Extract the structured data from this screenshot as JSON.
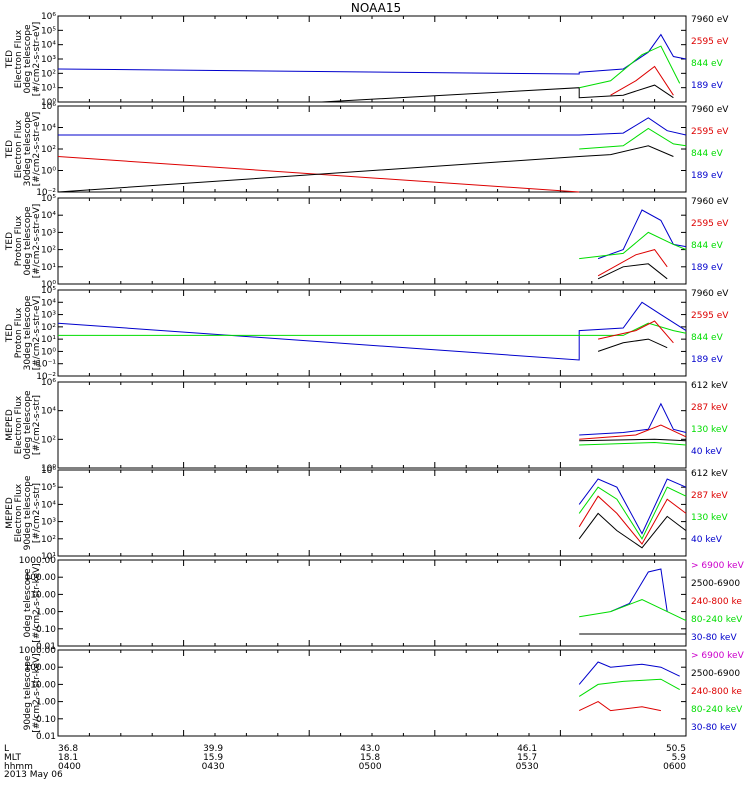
{
  "title": "NOAA15",
  "footer": {
    "rows": [
      {
        "label": "L",
        "values": [
          "36.8",
          "39.9",
          "43.0",
          "46.1",
          "50.5"
        ]
      },
      {
        "label": "MLT",
        "values": [
          "18.1",
          "15.9",
          "15.8",
          "15.7",
          "5.9"
        ]
      },
      {
        "label": "hhmm",
        "values": [
          "0400",
          "0430",
          "0500",
          "0530",
          "0600"
        ]
      }
    ],
    "date": "2013 May 06"
  },
  "colors": {
    "black": "#000000",
    "red": "#dd0000",
    "green": "#00dd00",
    "blue": "#0000cc",
    "magenta": "#cc00cc"
  },
  "chart_data": [
    {
      "type": "line",
      "ylabel": [
        "TED",
        "Electron Flux",
        "0deg telescope",
        "[#/cm2-s-str-eV]"
      ],
      "yscale": "log",
      "ylim": [
        1,
        1000000
      ],
      "ytick_labels": [
        "10⁰",
        "10¹",
        "10²",
        "10³",
        "10⁴",
        "10⁵",
        "10⁶"
      ],
      "legend": [
        {
          "label": "7960 eV",
          "color": "black"
        },
        {
          "label": "2595 eV",
          "color": "red"
        },
        {
          "label": "844 eV",
          "color": "green"
        },
        {
          "label": "189 eV",
          "color": "blue"
        }
      ],
      "series": [
        {
          "color": "blue",
          "values": [
            [
              0,
              200
            ],
            [
              0.83,
              90
            ],
            [
              0.83,
              120
            ],
            [
              0.9,
              200
            ],
            [
              0.94,
              3000
            ],
            [
              0.96,
              50000
            ],
            [
              0.98,
              1500
            ],
            [
              1,
              1000
            ]
          ]
        },
        {
          "color": "black",
          "values": [
            [
              0.42,
              1
            ],
            [
              0.83,
              10
            ],
            [
              0.83,
              2
            ],
            [
              0.9,
              3
            ],
            [
              0.95,
              15
            ],
            [
              0.98,
              2
            ]
          ]
        },
        {
          "color": "green",
          "values": [
            [
              0.83,
              10
            ],
            [
              0.88,
              30
            ],
            [
              0.93,
              2000
            ],
            [
              0.96,
              8000
            ],
            [
              0.99,
              20
            ]
          ]
        },
        {
          "color": "red",
          "values": [
            [
              0.88,
              3
            ],
            [
              0.92,
              30
            ],
            [
              0.95,
              300
            ],
            [
              0.98,
              3
            ]
          ]
        }
      ]
    },
    {
      "type": "line",
      "ylabel": [
        "TED",
        "Electron Flux",
        "30deg telescope",
        "[#/cm2-s-str-eV]"
      ],
      "yscale": "log",
      "ylim": [
        0.01,
        1000000
      ],
      "ytick_labels": [
        "10⁻²",
        "10⁰",
        "10²",
        "10⁴",
        "10⁶"
      ],
      "legend": [
        {
          "label": "7960 eV",
          "color": "black"
        },
        {
          "label": "2595 eV",
          "color": "red"
        },
        {
          "label": "844 eV",
          "color": "green"
        },
        {
          "label": "189 eV",
          "color": "blue"
        }
      ],
      "series": [
        {
          "color": "blue",
          "values": [
            [
              0,
              2000
            ],
            [
              0.83,
              2000
            ],
            [
              0.9,
              3000
            ],
            [
              0.94,
              80000
            ],
            [
              0.97,
              5000
            ],
            [
              1,
              2000
            ]
          ]
        },
        {
          "color": "red",
          "values": [
            [
              0,
              20
            ],
            [
              0.83,
              0.01
            ]
          ]
        },
        {
          "color": "black",
          "values": [
            [
              0,
              0.01
            ],
            [
              0.83,
              20
            ],
            [
              0.88,
              30
            ],
            [
              0.94,
              200
            ],
            [
              0.98,
              20
            ]
          ]
        },
        {
          "color": "green",
          "values": [
            [
              0.83,
              100
            ],
            [
              0.9,
              200
            ],
            [
              0.94,
              8000
            ],
            [
              0.98,
              300
            ],
            [
              1,
              200
            ]
          ]
        }
      ]
    },
    {
      "type": "line",
      "ylabel": [
        "TED",
        "Proton Flux",
        "0deg telescope",
        "[#/cm2-s-str-eV]"
      ],
      "yscale": "log",
      "ylim": [
        1,
        100000
      ],
      "ytick_labels": [
        "10⁰",
        "10¹",
        "10²",
        "10³",
        "10⁴",
        "10⁵"
      ],
      "legend": [
        {
          "label": "7960 eV",
          "color": "black"
        },
        {
          "label": "2595 eV",
          "color": "red"
        },
        {
          "label": "844 eV",
          "color": "green"
        },
        {
          "label": "189 eV",
          "color": "blue"
        }
      ],
      "series": [
        {
          "color": "blue",
          "values": [
            [
              0.86,
              30
            ],
            [
              0.9,
              100
            ],
            [
              0.93,
              20000
            ],
            [
              0.96,
              5000
            ],
            [
              0.98,
              200
            ],
            [
              1,
              150
            ]
          ]
        },
        {
          "color": "green",
          "values": [
            [
              0.83,
              30
            ],
            [
              0.9,
              60
            ],
            [
              0.94,
              1000
            ],
            [
              0.98,
              200
            ],
            [
              1,
              100
            ]
          ]
        },
        {
          "color": "red",
          "values": [
            [
              0.86,
              3
            ],
            [
              0.92,
              50
            ],
            [
              0.95,
              100
            ],
            [
              0.97,
              10
            ]
          ]
        },
        {
          "color": "black",
          "values": [
            [
              0.86,
              2
            ],
            [
              0.9,
              10
            ],
            [
              0.94,
              15
            ],
            [
              0.97,
              2
            ]
          ]
        }
      ]
    },
    {
      "type": "line",
      "ylabel": [
        "TED",
        "Proton Flux",
        "30deg telescope",
        "[#/cm2-s-str-eV]"
      ],
      "yscale": "log",
      "ylim": [
        0.01,
        100000
      ],
      "ytick_labels": [
        "10⁻²",
        "10⁻¹",
        "10⁰",
        "10¹",
        "10²",
        "10³",
        "10⁴",
        "10⁵"
      ],
      "legend": [
        {
          "label": "7960 eV",
          "color": "black"
        },
        {
          "label": "2595 eV",
          "color": "red"
        },
        {
          "label": "844 eV",
          "color": "green"
        },
        {
          "label": "189 eV",
          "color": "blue"
        }
      ],
      "series": [
        {
          "color": "blue",
          "values": [
            [
              0,
              200
            ],
            [
              0.83,
              0.2
            ],
            [
              0.83,
              50
            ],
            [
              0.9,
              80
            ],
            [
              0.93,
              10000
            ],
            [
              0.96,
              1000
            ],
            [
              1,
              50
            ]
          ]
        },
        {
          "color": "green",
          "values": [
            [
              0,
              20
            ],
            [
              0.9,
              20
            ],
            [
              0.94,
              200
            ],
            [
              0.98,
              50
            ],
            [
              1,
              30
            ]
          ]
        },
        {
          "color": "red",
          "values": [
            [
              0.86,
              10
            ],
            [
              0.92,
              50
            ],
            [
              0.95,
              300
            ],
            [
              0.98,
              5
            ]
          ]
        },
        {
          "color": "black",
          "values": [
            [
              0.86,
              1
            ],
            [
              0.9,
              5
            ],
            [
              0.94,
              10
            ],
            [
              0.97,
              2
            ]
          ]
        }
      ]
    },
    {
      "type": "line",
      "ylabel": [
        "MEPED",
        "Electron Flux",
        "0deg telescope",
        "[#/cm2-s-str]"
      ],
      "yscale": "log",
      "ylim": [
        1,
        1000000
      ],
      "ytick_labels": [
        "10⁰",
        "10²",
        "10⁴",
        "10⁶"
      ],
      "legend": [
        {
          "label": "612 keV",
          "color": "black"
        },
        {
          "label": "287 keV",
          "color": "red"
        },
        {
          "label": "130 keV",
          "color": "green"
        },
        {
          "label": "40 keV",
          "color": "blue"
        }
      ],
      "series": [
        {
          "color": "blue",
          "values": [
            [
              0.83,
              200
            ],
            [
              0.9,
              300
            ],
            [
              0.94,
              500
            ],
            [
              0.96,
              30000
            ],
            [
              0.98,
              500
            ],
            [
              1,
              300
            ]
          ]
        },
        {
          "color": "red",
          "values": [
            [
              0.83,
              100
            ],
            [
              0.92,
              200
            ],
            [
              0.96,
              1000
            ],
            [
              1,
              150
            ]
          ]
        },
        {
          "color": "black",
          "values": [
            [
              0.83,
              80
            ],
            [
              0.95,
              100
            ],
            [
              1,
              80
            ]
          ]
        },
        {
          "color": "green",
          "values": [
            [
              0.83,
              40
            ],
            [
              0.95,
              60
            ],
            [
              1,
              40
            ]
          ]
        }
      ]
    },
    {
      "type": "line",
      "ylabel": [
        "MEPED",
        "Electron Flux",
        "90deg telescope",
        "[#/cm2-s-str]"
      ],
      "yscale": "log",
      "ylim": [
        10,
        1000000
      ],
      "ytick_labels": [
        "10¹",
        "10²",
        "10³",
        "10⁴",
        "10⁵",
        "10⁶"
      ],
      "legend": [
        {
          "label": "612 keV",
          "color": "black"
        },
        {
          "label": "287 keV",
          "color": "red"
        },
        {
          "label": "130 keV",
          "color": "green"
        },
        {
          "label": "40 keV",
          "color": "blue"
        }
      ],
      "series": [
        {
          "color": "blue",
          "values": [
            [
              0.83,
              10000
            ],
            [
              0.86,
              300000
            ],
            [
              0.89,
              100000
            ],
            [
              0.93,
              200
            ],
            [
              0.97,
              300000
            ],
            [
              1,
              100000
            ]
          ]
        },
        {
          "color": "green",
          "values": [
            [
              0.83,
              3000
            ],
            [
              0.86,
              100000
            ],
            [
              0.89,
              20000
            ],
            [
              0.93,
              100
            ],
            [
              0.97,
              100000
            ],
            [
              1,
              30000
            ]
          ]
        },
        {
          "color": "red",
          "values": [
            [
              0.83,
              500
            ],
            [
              0.86,
              30000
            ],
            [
              0.89,
              3000
            ],
            [
              0.93,
              50
            ],
            [
              0.97,
              20000
            ],
            [
              1,
              3000
            ]
          ]
        },
        {
          "color": "black",
          "values": [
            [
              0.83,
              100
            ],
            [
              0.86,
              3000
            ],
            [
              0.89,
              300
            ],
            [
              0.93,
              30
            ],
            [
              0.97,
              2000
            ],
            [
              1,
              300
            ]
          ]
        }
      ]
    },
    {
      "type": "line",
      "ylabel": [
        "0deg telescope",
        "[#/cm2-s-str-keV]"
      ],
      "yscale": "log",
      "ylim": [
        0.01,
        1000
      ],
      "ytick_labels": [
        "0.01",
        "0.10",
        "1.00",
        "10.00",
        "100.00",
        "1000.00"
      ],
      "legend": [
        {
          "label": "> 6900 keV",
          "color": "magenta"
        },
        {
          "label": "2500-6900",
          "color": "black"
        },
        {
          "label": "240-800 ke",
          "color": "red"
        },
        {
          "label": "80-240 keV",
          "color": "green"
        },
        {
          "label": "30-80 keV",
          "color": "blue"
        }
      ],
      "series": [
        {
          "color": "blue",
          "values": [
            [
              0.88,
              1
            ],
            [
              0.91,
              3
            ],
            [
              0.94,
              200
            ],
            [
              0.96,
              300
            ],
            [
              0.97,
              1
            ]
          ]
        },
        {
          "color": "green",
          "values": [
            [
              0.83,
              0.5
            ],
            [
              0.88,
              1
            ],
            [
              0.93,
              5
            ],
            [
              0.97,
              1
            ],
            [
              1,
              0.3
            ]
          ]
        },
        {
          "color": "black",
          "values": [
            [
              0.83,
              0.05
            ],
            [
              1,
              0.05
            ]
          ]
        }
      ]
    },
    {
      "type": "line",
      "ylabel": [
        "90deg telescope",
        "[#/cm2-s-str-keV]"
      ],
      "yscale": "log",
      "ylim": [
        0.01,
        1000
      ],
      "ytick_labels": [
        "0.01",
        "0.10",
        "1.00",
        "10.00",
        "100.00",
        "1000.00"
      ],
      "legend": [
        {
          "label": "> 6900 keV",
          "color": "magenta"
        },
        {
          "label": "2500-6900",
          "color": "black"
        },
        {
          "label": "240-800 ke",
          "color": "red"
        },
        {
          "label": "80-240 keV",
          "color": "green"
        },
        {
          "label": "30-80 keV",
          "color": "blue"
        }
      ],
      "series": [
        {
          "color": "blue",
          "values": [
            [
              0.83,
              10
            ],
            [
              0.86,
              200
            ],
            [
              0.88,
              100
            ],
            [
              0.93,
              150
            ],
            [
              0.96,
              100
            ],
            [
              0.99,
              30
            ]
          ]
        },
        {
          "color": "green",
          "values": [
            [
              0.83,
              2
            ],
            [
              0.86,
              10
            ],
            [
              0.9,
              15
            ],
            [
              0.96,
              20
            ],
            [
              0.99,
              5
            ]
          ]
        },
        {
          "color": "red",
          "values": [
            [
              0.83,
              0.3
            ],
            [
              0.86,
              1
            ],
            [
              0.88,
              0.3
            ],
            [
              0.93,
              0.5
            ],
            [
              0.96,
              0.3
            ]
          ]
        }
      ]
    }
  ]
}
